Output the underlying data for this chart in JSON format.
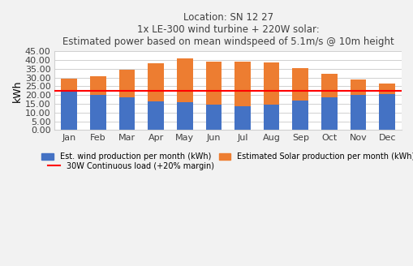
{
  "months": [
    "Jan",
    "Feb",
    "Mar",
    "Apr",
    "May",
    "Jun",
    "Jul",
    "Aug",
    "Sep",
    "Oct",
    "Nov",
    "Dec"
  ],
  "wind": [
    22.0,
    20.1,
    18.5,
    16.5,
    15.7,
    14.4,
    13.7,
    14.7,
    17.0,
    18.8,
    20.1,
    20.5
  ],
  "solar": [
    7.3,
    10.8,
    16.0,
    21.5,
    25.3,
    24.5,
    25.5,
    24.0,
    18.5,
    13.3,
    8.8,
    6.1
  ],
  "continuous_load": 22.2,
  "wind_color": "#4472C4",
  "solar_color": "#ED7D31",
  "load_color": "#FF0000",
  "title_line1": "Location: SN 12 27",
  "title_line2": "1x LE-300 wind turbine + 220W solar:",
  "title_line3": "Estimated power based on mean windspeed of 5.1m/s @ 10m height",
  "ylabel": "kWh",
  "ylim": [
    0,
    45
  ],
  "yticks": [
    0.0,
    5.0,
    10.0,
    15.0,
    20.0,
    25.0,
    30.0,
    35.0,
    40.0,
    45.0
  ],
  "legend_wind": "Est. wind production per month (kWh)",
  "legend_solar": "Estimated Solar production per month (kWh)",
  "legend_load": "30W Continuous load (+20% margin)",
  "bg_color": "#F2F2F2",
  "plot_bg_color": "#FFFFFF"
}
